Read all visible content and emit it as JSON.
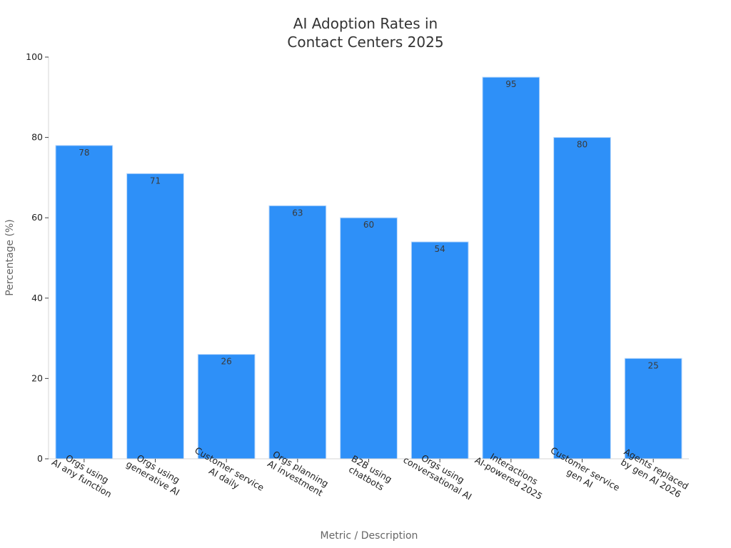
{
  "chart_data": {
    "type": "bar",
    "title": [
      "AI Adoption Rates in",
      "Contact Centers 2025"
    ],
    "xlabel": "Metric / Description",
    "ylabel": "Percentage (%)",
    "ylim": [
      0,
      100
    ],
    "yticks": [
      0,
      20,
      40,
      60,
      80,
      100
    ],
    "grid": false,
    "bar_color": "#2e90f8",
    "bar_edge_color": "#bcd9fb",
    "categories": [
      [
        "Orgs using",
        "AI any function"
      ],
      [
        "Orgs using",
        "generative AI"
      ],
      [
        "Customer service",
        "AI daily"
      ],
      [
        "Orgs planning",
        "AI investment"
      ],
      [
        "B2B using",
        "chatbots"
      ],
      [
        "Orgs using",
        "conversational AI"
      ],
      [
        "Interactions",
        "AI-powered 2025"
      ],
      [
        "Customer service",
        "gen AI"
      ],
      [
        "Agents replaced",
        "by gen AI 2026"
      ]
    ],
    "values": [
      78,
      71,
      26,
      63,
      60,
      54,
      95,
      80,
      25
    ]
  }
}
